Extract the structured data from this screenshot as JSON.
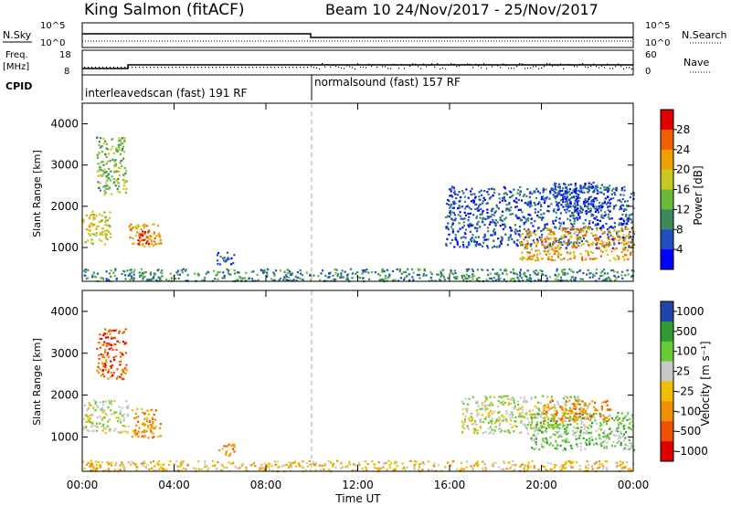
{
  "header": {
    "station": "King Salmon (fitACF)",
    "beam_date": "Beam 10  24/Nov/2017 - 25/Nov/2017"
  },
  "status_panels": {
    "nsky": {
      "label": "N.Sky",
      "ticks": [
        "10^5",
        "10^0"
      ]
    },
    "nsearch": {
      "label": "N.Search",
      "ticks": [
        "10^5",
        "10^0"
      ]
    },
    "freq": {
      "label_line1": "Freq.",
      "label_line2": "[MHz]",
      "ticks": [
        "18",
        "8"
      ]
    },
    "nave": {
      "label": "Nave",
      "ticks": [
        "60",
        "0"
      ]
    },
    "cpid": {
      "label": "CPID",
      "mode1": "interleavedscan (fast) 191 RF",
      "mode2": "normalsound (fast) 157 RF"
    }
  },
  "colors": {
    "power_scale": [
      "#0000ff",
      "#2050c0",
      "#3a8a5a",
      "#6aba3a",
      "#c8c820",
      "#f0a000",
      "#f06000",
      "#e00000"
    ],
    "velocity_scale": [
      "#e00000",
      "#f05000",
      "#f09000",
      "#f0c000",
      "#c8c8c8",
      "#66cc33",
      "#339933",
      "#2244aa"
    ]
  },
  "chart_data": [
    {
      "type": "heatmap",
      "title": "",
      "xlabel": "Time UT",
      "ylabel": "Slant Range [km]",
      "xlim_hours": [
        0,
        24
      ],
      "ylim": [
        180,
        4500
      ],
      "x_ticks": [
        "00:00",
        "04:00",
        "08:00",
        "12:00",
        "16:00",
        "20:00",
        "00:00"
      ],
      "y_ticks": [
        "1000",
        "2000",
        "3000",
        "4000"
      ],
      "colorbar_label": "Power [dB]",
      "colorbar_ticks": [
        "4",
        "8",
        "12",
        "16",
        "20",
        "24",
        "28"
      ],
      "regions": [
        {
          "t0": 0.0,
          "t1": 1.2,
          "r0": 1100,
          "r1": 1900,
          "level": 4
        },
        {
          "t0": 2.0,
          "t1": 3.4,
          "r0": 1000,
          "r1": 1600,
          "level": 5
        },
        {
          "t0": 2.4,
          "t1": 2.9,
          "r0": 1100,
          "r1": 1500,
          "level": 7
        },
        {
          "t0": 0.6,
          "t1": 1.9,
          "r0": 2300,
          "r1": 3700,
          "level": 3
        },
        {
          "t0": 5.8,
          "t1": 6.6,
          "r0": 600,
          "r1": 900,
          "level": 1
        },
        {
          "t0": 0.0,
          "t1": 24.0,
          "r0": 200,
          "r1": 500,
          "level": 2
        },
        {
          "t0": 15.8,
          "t1": 24.0,
          "r0": 1000,
          "r1": 2500,
          "level": 1
        },
        {
          "t0": 19.0,
          "t1": 24.0,
          "r0": 700,
          "r1": 1500,
          "level": 5
        },
        {
          "t0": 20.5,
          "t1": 23.0,
          "r0": 1800,
          "r1": 2600,
          "level": 1
        }
      ]
    },
    {
      "type": "heatmap",
      "title": "",
      "xlabel": "Time UT",
      "ylabel": "Slant Range [km]",
      "xlim_hours": [
        0,
        24
      ],
      "ylim": [
        180,
        4500
      ],
      "x_ticks": [
        "00:00",
        "04:00",
        "08:00",
        "12:00",
        "16:00",
        "20:00",
        "00:00"
      ],
      "y_ticks": [
        "1000",
        "2000",
        "3000",
        "4000"
      ],
      "colorbar_label": "Velocity [m s⁻¹]",
      "colorbar_ticks": [
        "1000",
        "500",
        "100",
        "25",
        "-25",
        "-100",
        "-500",
        "-1000"
      ],
      "regions": [
        {
          "t0": 0.0,
          "t1": 2.0,
          "r0": 1100,
          "r1": 1900,
          "level": 4
        },
        {
          "t0": 2.1,
          "t1": 3.4,
          "r0": 1000,
          "r1": 1700,
          "level": 2
        },
        {
          "t0": 0.6,
          "t1": 1.9,
          "r0": 2400,
          "r1": 3600,
          "level": 1
        },
        {
          "t0": 5.9,
          "t1": 6.6,
          "r0": 550,
          "r1": 850,
          "level": 2
        },
        {
          "t0": 0.0,
          "t1": 24.0,
          "r0": 200,
          "r1": 450,
          "level": 3
        },
        {
          "t0": 16.5,
          "t1": 22.0,
          "r0": 1100,
          "r1": 2000,
          "level": 4
        },
        {
          "t0": 19.5,
          "t1": 24.0,
          "r0": 700,
          "r1": 1600,
          "level": 5
        },
        {
          "t0": 20.0,
          "t1": 23.0,
          "r0": 1400,
          "r1": 1900,
          "level": 2
        }
      ]
    }
  ]
}
